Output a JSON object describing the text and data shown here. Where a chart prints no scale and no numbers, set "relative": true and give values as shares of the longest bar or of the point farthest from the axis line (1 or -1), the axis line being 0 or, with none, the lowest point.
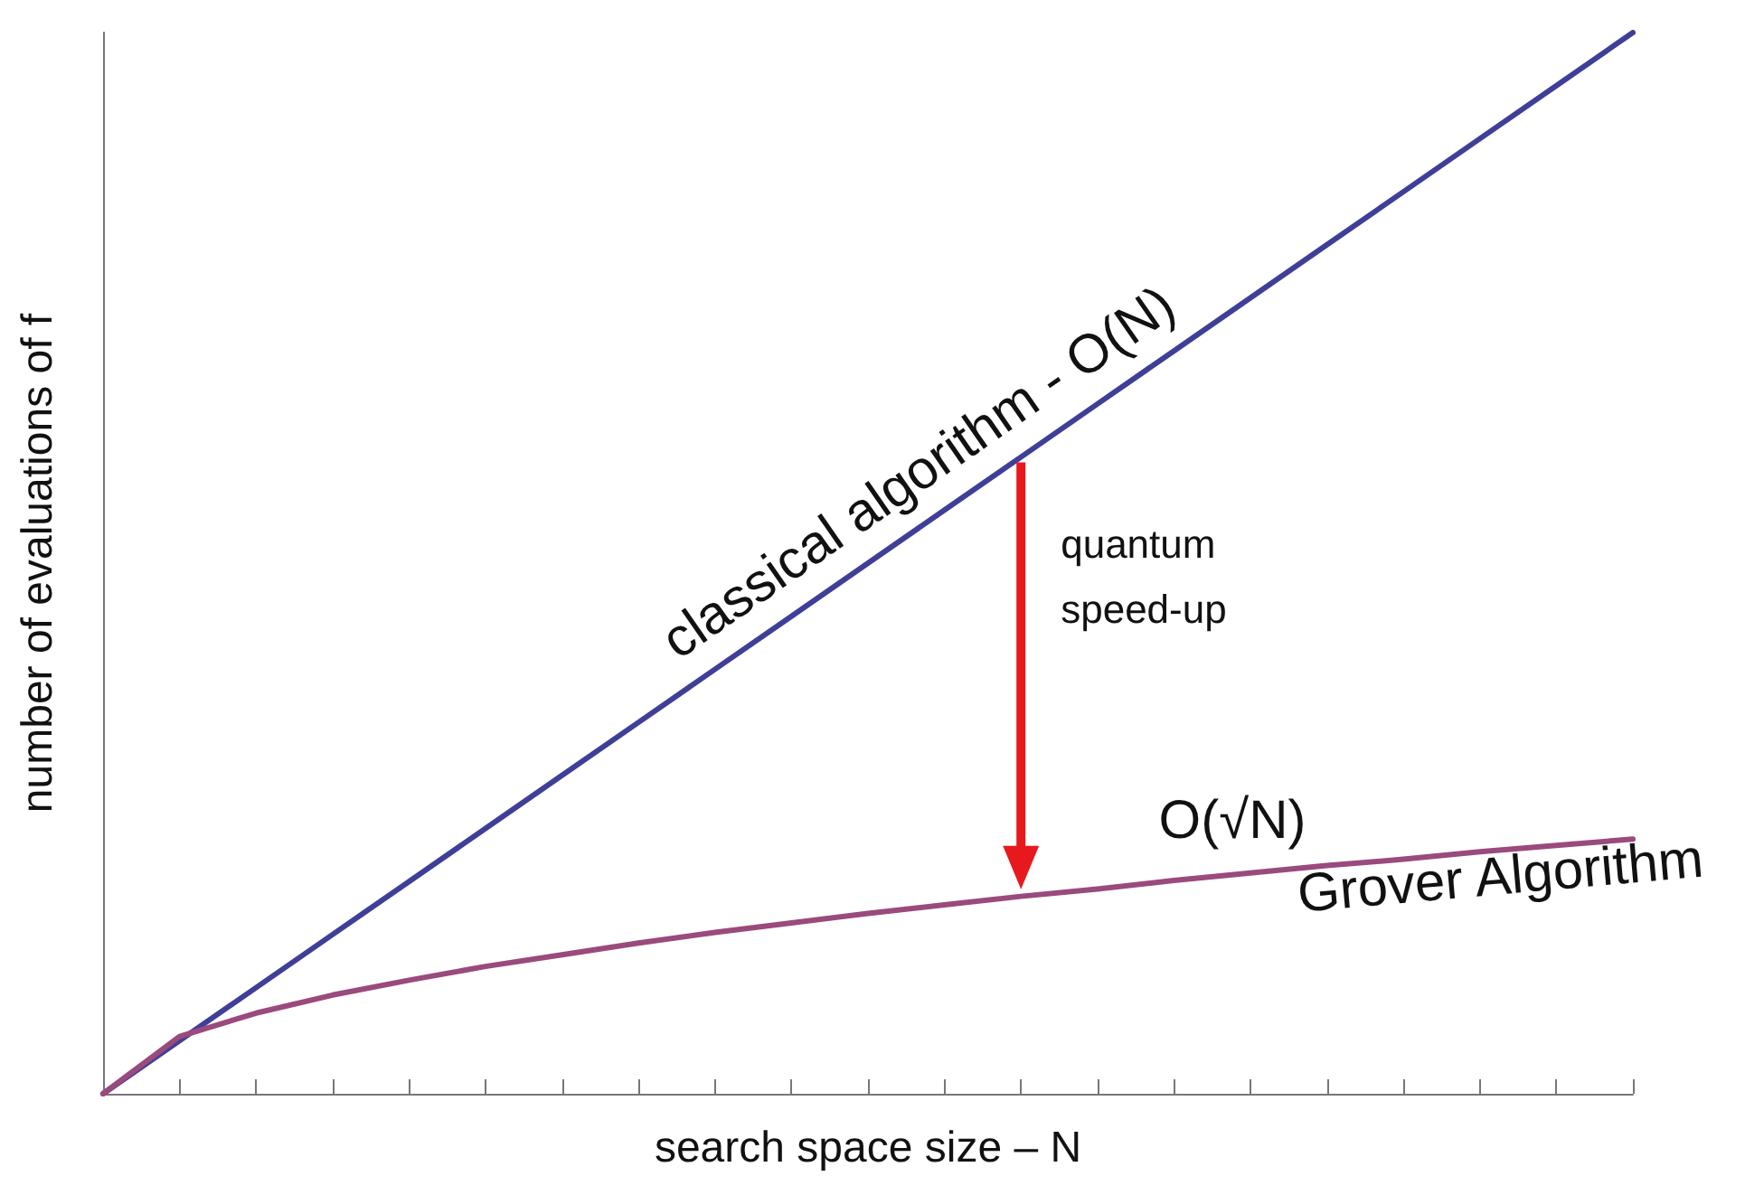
{
  "chart_data": {
    "type": "line",
    "relative": true,
    "xlabel": "search space size – N",
    "ylabel": "number of evaluations of f",
    "categories": [
      null,
      null,
      null,
      null,
      null,
      null,
      null,
      null,
      null,
      null,
      null,
      null,
      null,
      null,
      null,
      null,
      null,
      null,
      null,
      null,
      null
    ],
    "series": [
      {
        "name": "classical algorithm - O(N)",
        "color": "#3f3f99",
        "values": [
          0,
          0.05,
          0.1,
          0.15,
          0.2,
          0.25,
          0.3,
          0.35,
          0.4,
          0.45,
          0.5,
          0.55,
          0.6,
          0.65,
          0.7,
          0.75,
          0.8,
          0.85,
          0.9,
          0.95,
          1
        ]
      },
      {
        "name": "Grover Algorithm",
        "color": "#9a4a7c",
        "values": [
          0,
          0.054,
          0.076,
          0.093,
          0.107,
          0.12,
          0.131,
          0.142,
          0.152,
          0.161,
          0.17,
          0.178,
          0.186,
          0.193,
          0.201,
          0.208,
          0.215,
          0.221,
          0.228,
          0.234,
          0.24
        ]
      }
    ],
    "annotations": [
      "O(√N)",
      "quantum speed-up"
    ],
    "legend": false,
    "marker": "none",
    "line_style": "solid",
    "grid": false
  }
}
